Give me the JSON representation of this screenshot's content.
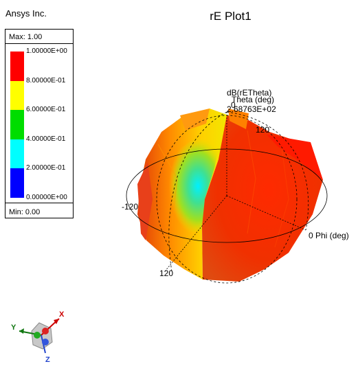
{
  "brand": "Ansys Inc.",
  "plot_title": "rE Plot1",
  "legend": {
    "max_label": "Max: 1.00",
    "min_label": "Min: 0.00",
    "ticks": [
      "1.00000E+00",
      "8.00000E-01",
      "6.00000E-01",
      "4.00000E-01",
      "2.00000E-01",
      "0.00000E+00"
    ],
    "band_colors": [
      "#ff0000",
      "#ffff00",
      "#00dd00",
      "#00ffff",
      "#0000ff"
    ]
  },
  "plot_labels": {
    "quantity": "dB(rETheta)",
    "theta_axis": "Theta (deg)",
    "zero": "0",
    "value": "2.68763E+02",
    "t120_top": "120",
    "t120_left": "-120",
    "t120_bottom": "120",
    "phi_axis": "0 Phi (deg)"
  },
  "triad": {
    "x": "X",
    "y": "Y",
    "z": "Z"
  }
}
